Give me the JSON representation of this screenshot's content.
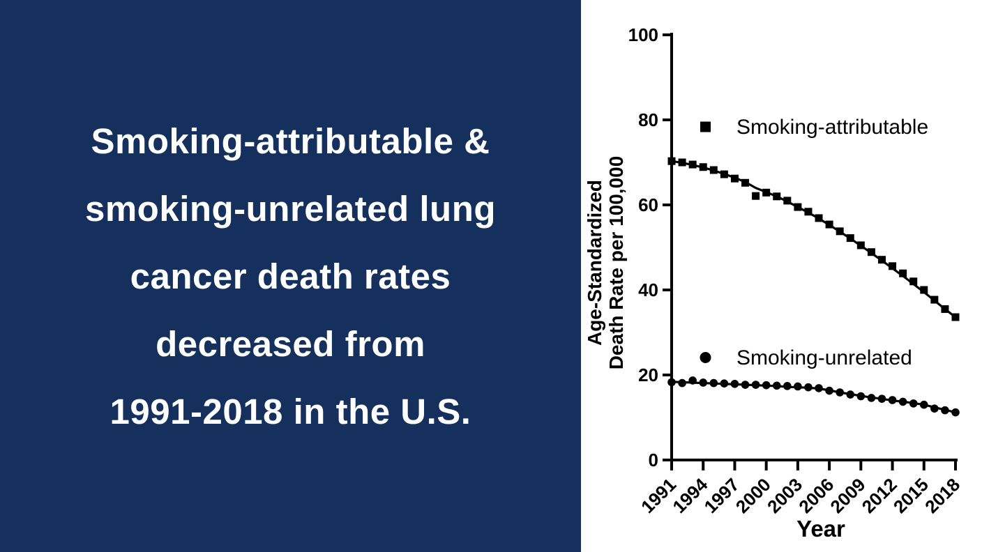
{
  "panel": {
    "lines": [
      "Smoking-attributable &",
      "smoking-unrelated lung",
      "cancer death rates",
      "decreased from",
      "1991-2018 in the U.S."
    ]
  },
  "colors": {
    "panel_bg": "#15305C",
    "panel_text": "#FFFFFF",
    "chart_ink": "#000000",
    "background": "#FFFFFF"
  },
  "chart_data": {
    "type": "line",
    "title": "",
    "xlabel": "Year",
    "ylabel_lines": [
      "Age-Standardized",
      "Death Rate per 100,000"
    ],
    "ylim": [
      0,
      100
    ],
    "yticks": [
      0,
      20,
      40,
      60,
      80,
      100
    ],
    "xticks": [
      1991,
      1994,
      1997,
      2000,
      2003,
      2006,
      2009,
      2012,
      2015,
      2018
    ],
    "grid": false,
    "legend_position": "inside-upper-left",
    "x": [
      1991,
      1992,
      1993,
      1994,
      1995,
      1996,
      1997,
      1998,
      1999,
      2000,
      2001,
      2002,
      2003,
      2004,
      2005,
      2006,
      2007,
      2008,
      2009,
      2010,
      2011,
      2012,
      2013,
      2014,
      2015,
      2016,
      2017,
      2018
    ],
    "series": [
      {
        "name": "Smoking-attributable",
        "marker": "square",
        "values": [
          70.3,
          70.0,
          69.5,
          68.9,
          68.2,
          67.2,
          66.2,
          65.2,
          62.1,
          62.9,
          62.0,
          61.0,
          59.5,
          58.4,
          56.9,
          55.4,
          53.8,
          52.2,
          50.5,
          48.9,
          47.1,
          45.6,
          43.9,
          42.0,
          40.0,
          37.7,
          35.5,
          33.6
        ],
        "trend_line": [
          70.3,
          69.9,
          69.4,
          68.8,
          68.1,
          67.3,
          66.4,
          65.4,
          64.0,
          63.0,
          62.0,
          60.8,
          59.5,
          58.2,
          56.8,
          55.3,
          53.7,
          52.1,
          50.4,
          48.7,
          46.9,
          45.1,
          43.3,
          41.4,
          39.5,
          37.5,
          35.5,
          33.6
        ]
      },
      {
        "name": "Smoking-unrelated",
        "marker": "circle",
        "values": [
          18.3,
          18.1,
          18.7,
          18.2,
          18.1,
          18.0,
          17.9,
          17.7,
          17.7,
          17.6,
          17.5,
          17.4,
          17.3,
          17.1,
          16.9,
          16.3,
          15.9,
          15.4,
          15.0,
          14.6,
          14.4,
          14.1,
          13.7,
          13.3,
          13.0,
          12.1,
          11.7,
          11.2
        ],
        "trend_line": [
          18.4,
          18.3,
          18.2,
          18.1,
          18.0,
          17.9,
          17.8,
          17.7,
          17.6,
          17.5,
          17.4,
          17.2,
          17.1,
          17.0,
          16.8,
          16.4,
          15.9,
          15.5,
          15.1,
          14.7,
          14.4,
          14.0,
          13.7,
          13.4,
          13.0,
          12.4,
          11.8,
          11.2
        ]
      }
    ]
  }
}
